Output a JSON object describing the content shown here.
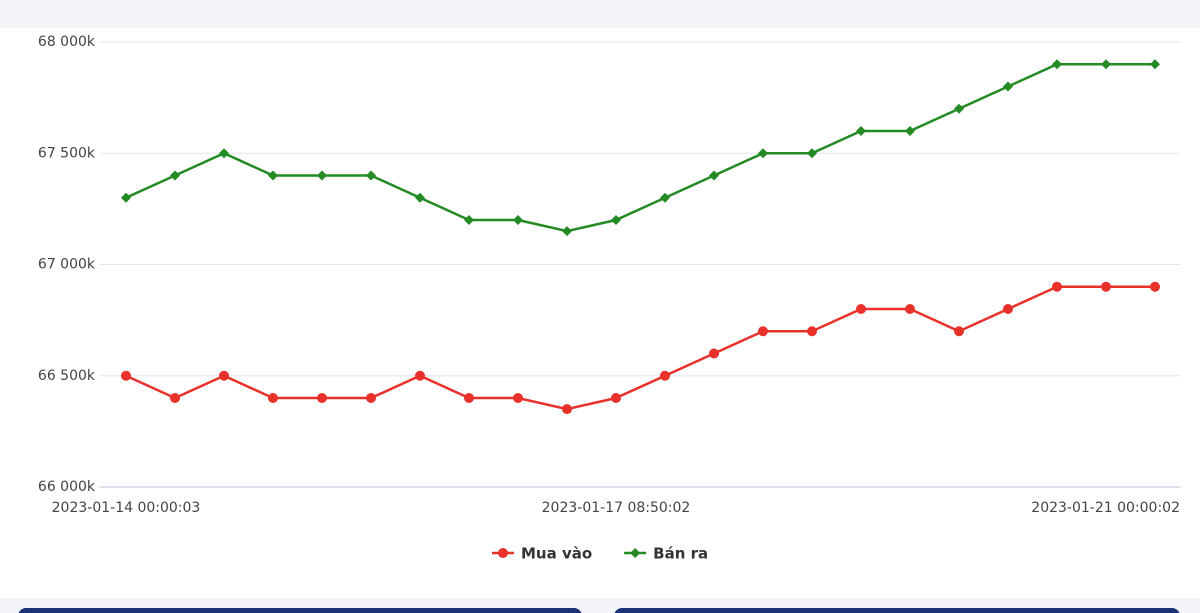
{
  "chart_data": {
    "type": "line",
    "categories": [
      "2023-01-14 00:00:03",
      null,
      null,
      null,
      null,
      null,
      null,
      null,
      null,
      null,
      "2023-01-17 08:50:02",
      null,
      null,
      null,
      null,
      null,
      null,
      null,
      null,
      null,
      null,
      "2023-01-21 00:00:02"
    ],
    "series": [
      {
        "name": "Mua vào",
        "color": "#e8312a",
        "marker": "circle",
        "values": [
          66500,
          66400,
          66500,
          66400,
          66400,
          66400,
          66500,
          66400,
          66400,
          66350,
          66400,
          66500,
          66600,
          66700,
          66700,
          66800,
          66800,
          66700,
          66800,
          66900,
          66900,
          66900
        ]
      },
      {
        "name": "Bán ra",
        "color": "#238a24",
        "marker": "diamond",
        "values": [
          67300,
          67400,
          67500,
          67400,
          67400,
          67400,
          67300,
          67200,
          67200,
          67150,
          67200,
          67300,
          67400,
          67500,
          67500,
          67600,
          67600,
          67700,
          67800,
          67900,
          67900,
          67900
        ]
      }
    ],
    "ylim": [
      66000,
      68000
    ],
    "yticks": [
      {
        "value": 66000,
        "label": "66 000k"
      },
      {
        "value": 66500,
        "label": "66 500k"
      },
      {
        "value": 67000,
        "label": "67 000k"
      },
      {
        "value": 67500,
        "label": "67 500k"
      },
      {
        "value": 68000,
        "label": "68 000k"
      }
    ],
    "grid": true,
    "legend": "bottom"
  }
}
